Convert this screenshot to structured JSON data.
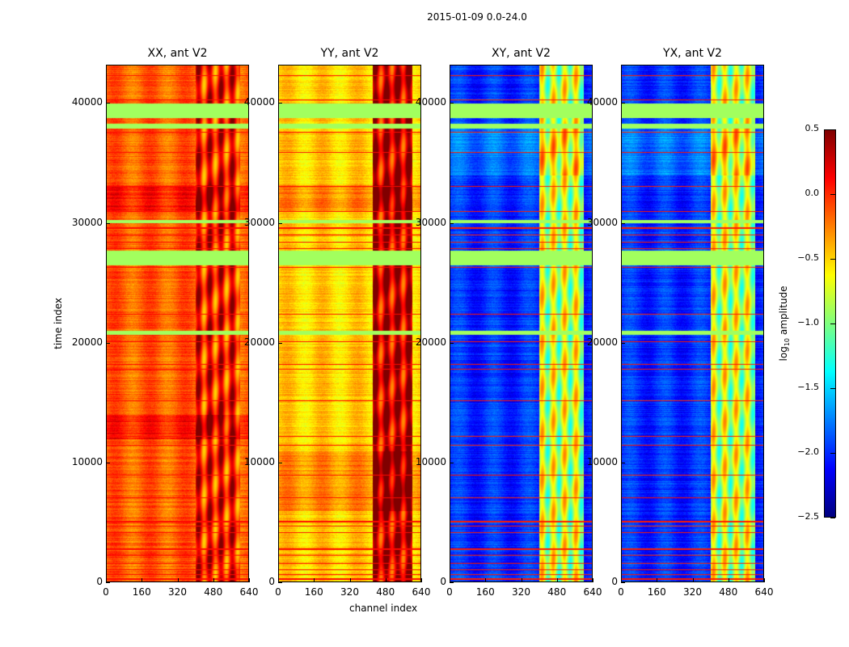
{
  "chart_data": {
    "type": "heatmap",
    "title": "2015-01-09 0.0-24.0",
    "xlabel": "channel index",
    "ylabel": "time index",
    "xlim": [
      0,
      640
    ],
    "ylim": [
      0,
      43200
    ],
    "xticks": [
      "0",
      "160",
      "320",
      "480",
      "640"
    ],
    "xtick_values": [
      0,
      160,
      320,
      480,
      640
    ],
    "yticks": [
      "0",
      "10000",
      "20000",
      "30000",
      "40000"
    ],
    "ytick_values": [
      0,
      10000,
      20000,
      30000,
      40000
    ],
    "colormap": "jet",
    "colorbar": {
      "label_prefix": "log",
      "label_sub": "10",
      "label_suffix": " amplitude",
      "range": [
        -2.5,
        0.5
      ],
      "ticks": [
        "0.5",
        "0.0",
        "−0.5",
        "−1.0",
        "−1.5",
        "−2.0",
        "−2.5"
      ],
      "tick_values": [
        0.5,
        0.0,
        -0.5,
        -1.0,
        -1.5,
        -2.0,
        -2.5
      ]
    },
    "flag_value": -0.9,
    "flagged_time_ranges": [
      [
        38800,
        40000
      ],
      [
        37900,
        38300
      ],
      [
        26500,
        27700
      ],
      [
        20700,
        21000
      ],
      [
        30000,
        30300
      ]
    ],
    "rfi_lines": [
      300,
      700,
      1100,
      1600,
      2300,
      2800,
      4200,
      4700,
      5100,
      7100,
      9000,
      11500,
      12200,
      15200,
      17800,
      18200,
      20100,
      22400,
      26300,
      27900,
      28400,
      29000,
      29600,
      31000,
      33100,
      35900,
      37600,
      40300,
      42300
    ],
    "panels": [
      {
        "title": "XX, ant V2",
        "base": -0.15,
        "band_channels": [
          400,
          600
        ],
        "band_value": 0.05,
        "time_bright": [
          [
            31000,
            33200
          ],
          [
            12000,
            14000
          ]
        ]
      },
      {
        "title": "YY, ant V2",
        "base": -0.5,
        "band_channels": [
          420,
          600
        ],
        "band_value": 0.25,
        "time_bright": [
          [
            31000,
            33200
          ],
          [
            6000,
            11000
          ]
        ]
      },
      {
        "title": "XY, ant V2",
        "base": -2.0,
        "band_channels": [
          400,
          600
        ],
        "band_value": -0.8,
        "time_bright": [
          [
            34000,
            38000
          ]
        ]
      },
      {
        "title": "YX, ant V2",
        "base": -2.0,
        "band_channels": [
          400,
          600
        ],
        "band_value": -0.8,
        "time_bright": [
          [
            34000,
            38000
          ]
        ]
      }
    ]
  }
}
